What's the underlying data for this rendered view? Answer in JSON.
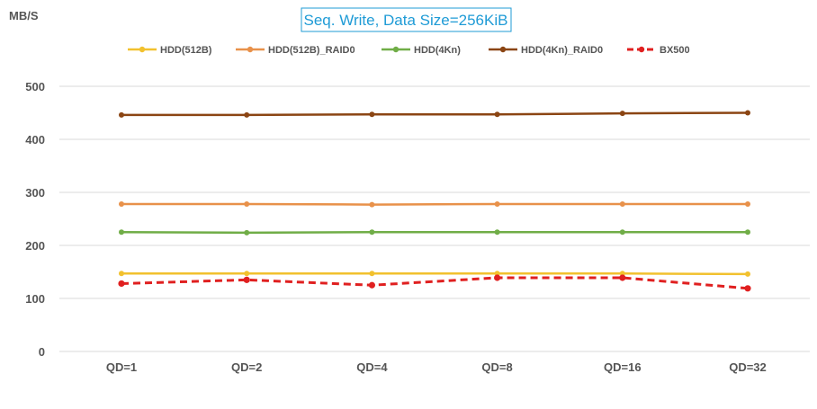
{
  "chart_data": {
    "type": "line",
    "title": "Seq. Write, Data Size=256KiB",
    "ylabel": "MB/S",
    "xlabel": "",
    "categories": [
      "QD=1",
      "QD=2",
      "QD=4",
      "QD=8",
      "QD=16",
      "QD=32"
    ],
    "ylim": [
      0,
      500
    ],
    "yticks": [
      0,
      100,
      200,
      300,
      400,
      500
    ],
    "grid": true,
    "legend_position": "top",
    "series": [
      {
        "name": "HDD(512B)",
        "color": "#f2c12e",
        "dashed": false,
        "values": [
          147,
          147,
          147,
          147,
          147,
          146
        ]
      },
      {
        "name": "HDD(512B)_RAID0",
        "color": "#e8914a",
        "dashed": false,
        "values": [
          278,
          278,
          277,
          278,
          278,
          278
        ]
      },
      {
        "name": "HDD(4Kn)",
        "color": "#70ad47",
        "dashed": false,
        "values": [
          225,
          224,
          225,
          225,
          225,
          225
        ]
      },
      {
        "name": "HDD(4Kn)_RAID0",
        "color": "#8b4513",
        "dashed": false,
        "values": [
          446,
          446,
          447,
          447,
          449,
          450
        ]
      },
      {
        "name": "BX500",
        "color": "#e02020",
        "dashed": true,
        "values": [
          128,
          135,
          125,
          139,
          139,
          119
        ]
      }
    ]
  }
}
